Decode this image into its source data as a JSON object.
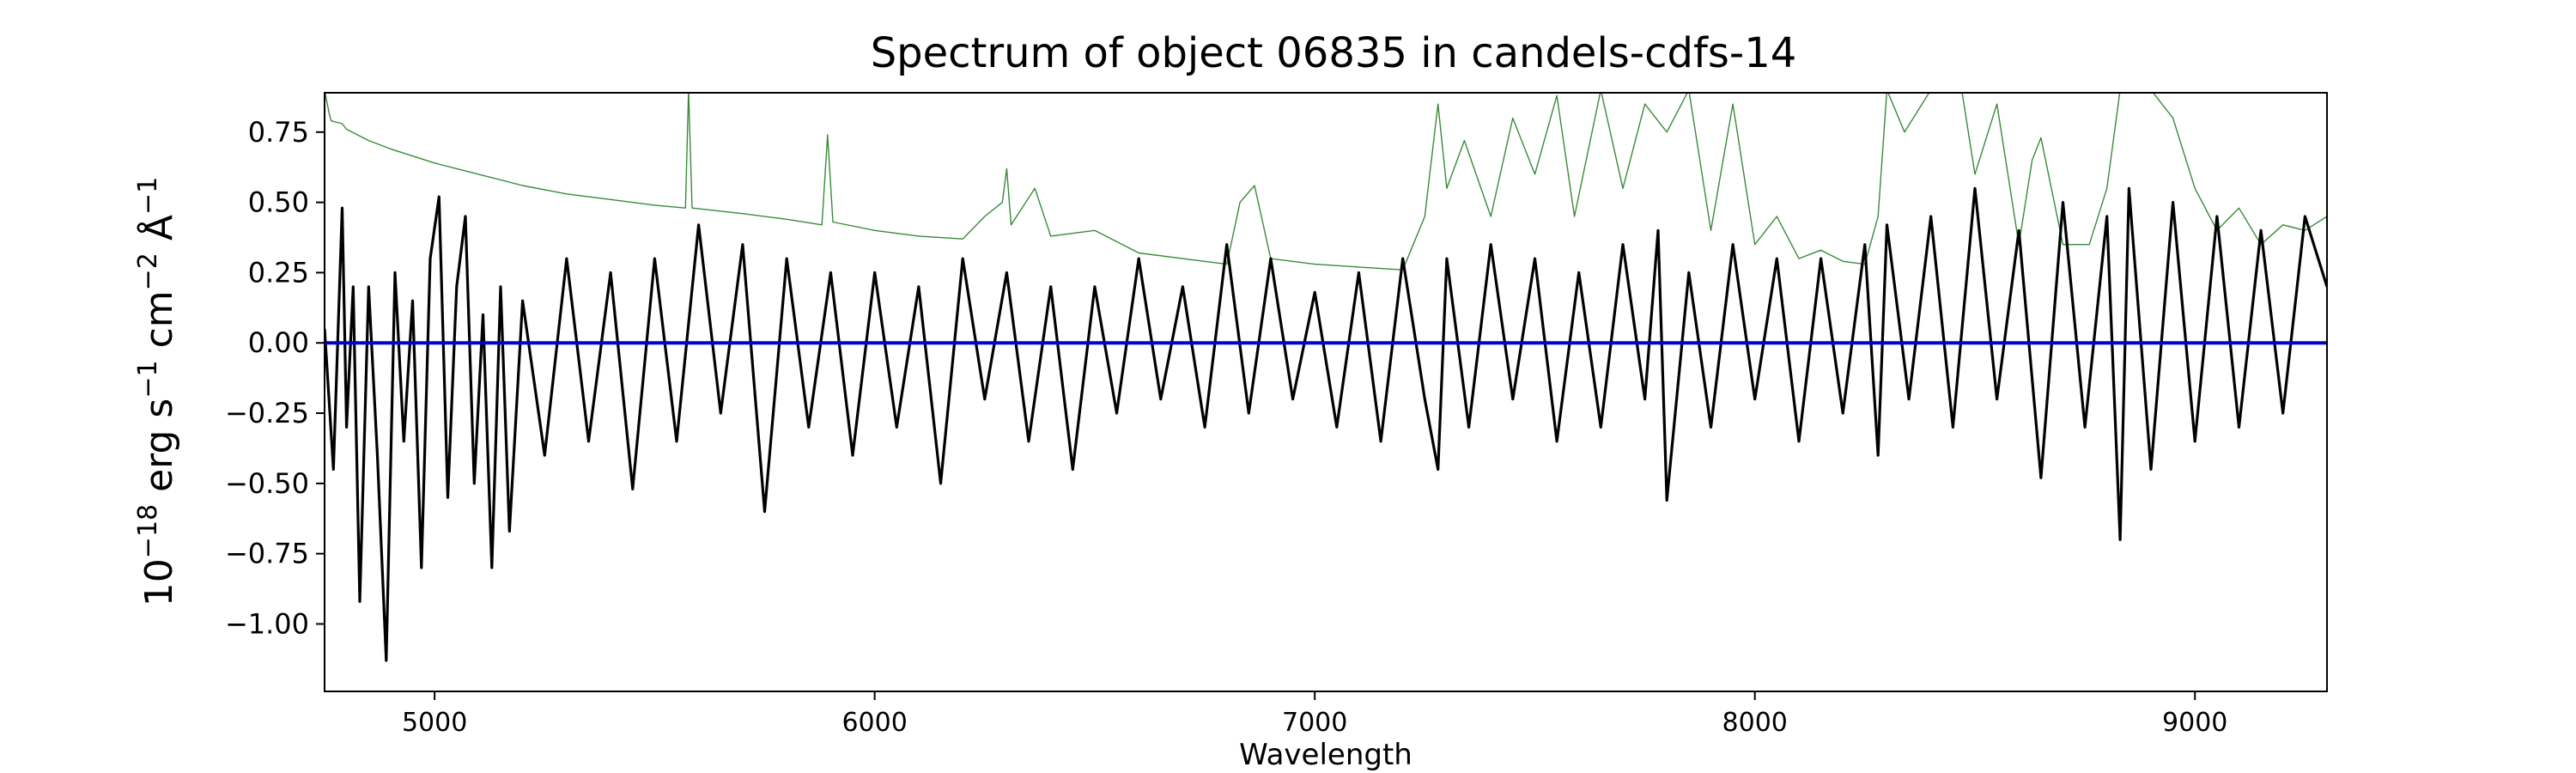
{
  "chart_data": {
    "type": "line",
    "title": "Spectrum of object 06835 in candels-cdfs-14",
    "xlabel": "Wavelength",
    "ylabel": {
      "base": "10",
      "base_exp": "−18",
      "unit1": " erg s",
      "unit1_exp": "−1",
      "unit2": " cm",
      "unit2_exp": "−2",
      "unit3": " Å",
      "unit3_exp": "−1"
    },
    "xlim": [
      4750,
      9300
    ],
    "ylim": [
      -1.24,
      0.89
    ],
    "x_ticks": [
      5000,
      6000,
      7000,
      8000,
      9000
    ],
    "x_tick_labels": [
      "5000",
      "6000",
      "7000",
      "8000",
      "9000"
    ],
    "y_ticks": [
      0.75,
      0.5,
      0.25,
      0.0,
      -0.25,
      -0.5,
      -0.75,
      -1.0
    ],
    "y_tick_labels": [
      "0.75",
      "0.50",
      "0.25",
      "0.00",
      "−0.25",
      "−0.50",
      "−0.75",
      "−1.00"
    ],
    "grid": false,
    "series": [
      {
        "role": "sky-spectrum",
        "color": "#3a8a3a",
        "x": [
          4750,
          4760,
          4765,
          4790,
          4800,
          4850,
          4900,
          5000,
          5100,
          5200,
          5300,
          5400,
          5500,
          5570,
          5577,
          5585,
          5700,
          5800,
          5880,
          5893,
          5905,
          6000,
          6100,
          6200,
          6250,
          6290,
          6300,
          6310,
          6364,
          6400,
          6500,
          6600,
          6700,
          6800,
          6830,
          6863,
          6900,
          7000,
          7100,
          7200,
          7250,
          7280,
          7300,
          7340,
          7400,
          7450,
          7500,
          7550,
          7590,
          7650,
          7700,
          7750,
          7800,
          7850,
          7900,
          7950,
          8000,
          8050,
          8100,
          8150,
          8200,
          8250,
          8280,
          8300,
          8340,
          8400,
          8430,
          8470,
          8500,
          8550,
          8600,
          8630,
          8650,
          8700,
          8760,
          8800,
          8830,
          8860,
          8900,
          8950,
          9000,
          9050,
          9100,
          9150,
          9200,
          9250,
          9300
        ],
        "y": [
          0.9,
          0.82,
          0.79,
          0.78,
          0.76,
          0.72,
          0.69,
          0.64,
          0.6,
          0.56,
          0.53,
          0.51,
          0.49,
          0.48,
          0.9,
          0.48,
          0.46,
          0.44,
          0.42,
          0.74,
          0.43,
          0.4,
          0.38,
          0.37,
          0.45,
          0.5,
          0.62,
          0.42,
          0.55,
          0.38,
          0.4,
          0.32,
          0.3,
          0.28,
          0.5,
          0.56,
          0.3,
          0.28,
          0.27,
          0.26,
          0.45,
          0.85,
          0.55,
          0.72,
          0.45,
          0.8,
          0.6,
          0.88,
          0.45,
          0.9,
          0.55,
          0.85,
          0.75,
          0.9,
          0.4,
          0.85,
          0.35,
          0.45,
          0.3,
          0.33,
          0.29,
          0.28,
          0.45,
          0.9,
          0.75,
          0.9,
          0.9,
          0.9,
          0.6,
          0.85,
          0.35,
          0.65,
          0.73,
          0.35,
          0.35,
          0.55,
          0.9,
          0.9,
          0.9,
          0.8,
          0.55,
          0.4,
          0.48,
          0.35,
          0.42,
          0.4,
          0.45
        ]
      },
      {
        "role": "object-spectrum",
        "color": "#000000",
        "x": [
          4750,
          4770,
          4790,
          4800,
          4815,
          4830,
          4850,
          4870,
          4890,
          4910,
          4930,
          4950,
          4970,
          4990,
          5010,
          5030,
          5050,
          5070,
          5090,
          5110,
          5130,
          5150,
          5170,
          5200,
          5250,
          5300,
          5350,
          5400,
          5450,
          5500,
          5550,
          5600,
          5650,
          5700,
          5750,
          5800,
          5850,
          5900,
          5950,
          6000,
          6050,
          6100,
          6150,
          6200,
          6250,
          6300,
          6350,
          6400,
          6450,
          6500,
          6550,
          6600,
          6650,
          6700,
          6750,
          6800,
          6850,
          6900,
          6950,
          7000,
          7050,
          7100,
          7150,
          7200,
          7250,
          7280,
          7300,
          7350,
          7400,
          7450,
          7500,
          7550,
          7600,
          7650,
          7700,
          7750,
          7780,
          7800,
          7850,
          7900,
          7950,
          8000,
          8050,
          8100,
          8150,
          8200,
          8250,
          8280,
          8300,
          8350,
          8400,
          8450,
          8500,
          8550,
          8600,
          8650,
          8700,
          8750,
          8800,
          8830,
          8850,
          8900,
          8950,
          9000,
          9050,
          9100,
          9150,
          9200,
          9250,
          9300
        ],
        "y": [
          0.05,
          -0.45,
          0.48,
          -0.3,
          0.2,
          -0.92,
          0.2,
          -0.4,
          -1.13,
          0.25,
          -0.35,
          0.15,
          -0.8,
          0.3,
          0.52,
          -0.55,
          0.2,
          0.45,
          -0.5,
          0.1,
          -0.8,
          0.2,
          -0.67,
          0.15,
          -0.4,
          0.3,
          -0.35,
          0.25,
          -0.52,
          0.3,
          -0.35,
          0.42,
          -0.25,
          0.35,
          -0.6,
          0.3,
          -0.3,
          0.25,
          -0.4,
          0.25,
          -0.3,
          0.2,
          -0.5,
          0.3,
          -0.2,
          0.25,
          -0.35,
          0.2,
          -0.45,
          0.2,
          -0.25,
          0.3,
          -0.2,
          0.2,
          -0.3,
          0.35,
          -0.25,
          0.3,
          -0.2,
          0.18,
          -0.3,
          0.25,
          -0.35,
          0.3,
          -0.2,
          -0.45,
          0.3,
          -0.3,
          0.35,
          -0.2,
          0.3,
          -0.35,
          0.25,
          -0.3,
          0.35,
          -0.2,
          0.4,
          -0.56,
          0.25,
          -0.3,
          0.35,
          -0.2,
          0.3,
          -0.35,
          0.3,
          -0.25,
          0.35,
          -0.4,
          0.42,
          -0.2,
          0.45,
          -0.3,
          0.55,
          -0.2,
          0.4,
          -0.48,
          0.5,
          -0.3,
          0.45,
          -0.7,
          0.55,
          -0.45,
          0.5,
          -0.35,
          0.45,
          -0.3,
          0.4,
          -0.25,
          0.45,
          0.2
        ]
      },
      {
        "role": "zero-line",
        "color": "#0000cc",
        "x": [
          4750,
          9300
        ],
        "y": [
          0.0,
          0.0
        ]
      }
    ]
  }
}
